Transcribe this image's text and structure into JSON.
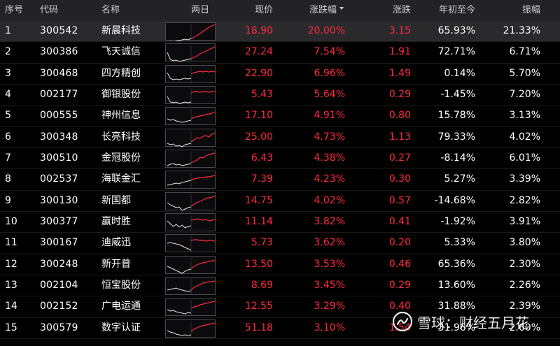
{
  "columns": {
    "idx": "序号",
    "code": "代码",
    "name": "名称",
    "spark": "两日",
    "price": "现价",
    "pct": "涨跌幅",
    "chg": "涨跌",
    "ytd": "年初至今",
    "amp": "振幅"
  },
  "colors": {
    "up": "#ff2a3c",
    "base": "#ffffff"
  },
  "rows": [
    {
      "idx": "1",
      "code": "300542",
      "name": "新晨科技",
      "price": "18.90",
      "pct": "20.00%",
      "chg": "3.15",
      "ytd": "65.93%",
      "amp": "21.33%"
    },
    {
      "idx": "2",
      "code": "300386",
      "name": "飞天诚信",
      "price": "27.24",
      "pct": "7.54%",
      "chg": "1.91",
      "ytd": "72.71%",
      "amp": "6.71%"
    },
    {
      "idx": "3",
      "code": "300468",
      "name": "四方精创",
      "price": "22.90",
      "pct": "6.96%",
      "chg": "1.49",
      "ytd": "0.14%",
      "amp": "5.70%"
    },
    {
      "idx": "4",
      "code": "002177",
      "name": "御银股份",
      "price": "5.43",
      "pct": "5.64%",
      "chg": "0.29",
      "ytd": "-1.45%",
      "amp": "7.20%"
    },
    {
      "idx": "5",
      "code": "000555",
      "name": "神州信息",
      "price": "17.10",
      "pct": "4.91%",
      "chg": "0.80",
      "ytd": "15.78%",
      "amp": "3.13%"
    },
    {
      "idx": "6",
      "code": "300348",
      "name": "长亮科技",
      "price": "25.00",
      "pct": "4.73%",
      "chg": "1.13",
      "ytd": "79.33%",
      "amp": "4.02%"
    },
    {
      "idx": "7",
      "code": "300510",
      "name": "金冠股份",
      "price": "6.43",
      "pct": "4.38%",
      "chg": "0.27",
      "ytd": "-8.14%",
      "amp": "6.01%"
    },
    {
      "idx": "8",
      "code": "002537",
      "name": "海联金汇",
      "price": "7.39",
      "pct": "4.23%",
      "chg": "0.30",
      "ytd": "5.27%",
      "amp": "3.39%"
    },
    {
      "idx": "9",
      "code": "300130",
      "name": "新国都",
      "price": "14.75",
      "pct": "4.02%",
      "chg": "0.57",
      "ytd": "-14.68%",
      "amp": "2.82%"
    },
    {
      "idx": "10",
      "code": "300377",
      "name": "赢时胜",
      "price": "11.14",
      "pct": "3.82%",
      "chg": "0.41",
      "ytd": "-1.92%",
      "amp": "3.91%"
    },
    {
      "idx": "11",
      "code": "300167",
      "name": "迪威迅",
      "price": "5.73",
      "pct": "3.62%",
      "chg": "0.20",
      "ytd": "5.33%",
      "amp": "3.80%"
    },
    {
      "idx": "12",
      "code": "300248",
      "name": "新开普",
      "price": "13.50",
      "pct": "3.53%",
      "chg": "0.46",
      "ytd": "65.36%",
      "amp": "2.30%"
    },
    {
      "idx": "13",
      "code": "002104",
      "name": "恒宝股份",
      "price": "8.69",
      "pct": "3.45%",
      "chg": "0.29",
      "ytd": "13.60%",
      "amp": "2.26%"
    },
    {
      "idx": "14",
      "code": "002152",
      "name": "广电运通",
      "price": "12.55",
      "pct": "3.29%",
      "chg": "0.40",
      "ytd": "31.88%",
      "amp": "2.39%"
    },
    {
      "idx": "15",
      "code": "300579",
      "name": "数字认证",
      "price": "51.18",
      "pct": "3.10%",
      "chg": "1.54",
      "ytd": "31.96%",
      "amp": "2.60%"
    }
  ],
  "watermark": {
    "text": "雪球：财经五月花"
  }
}
